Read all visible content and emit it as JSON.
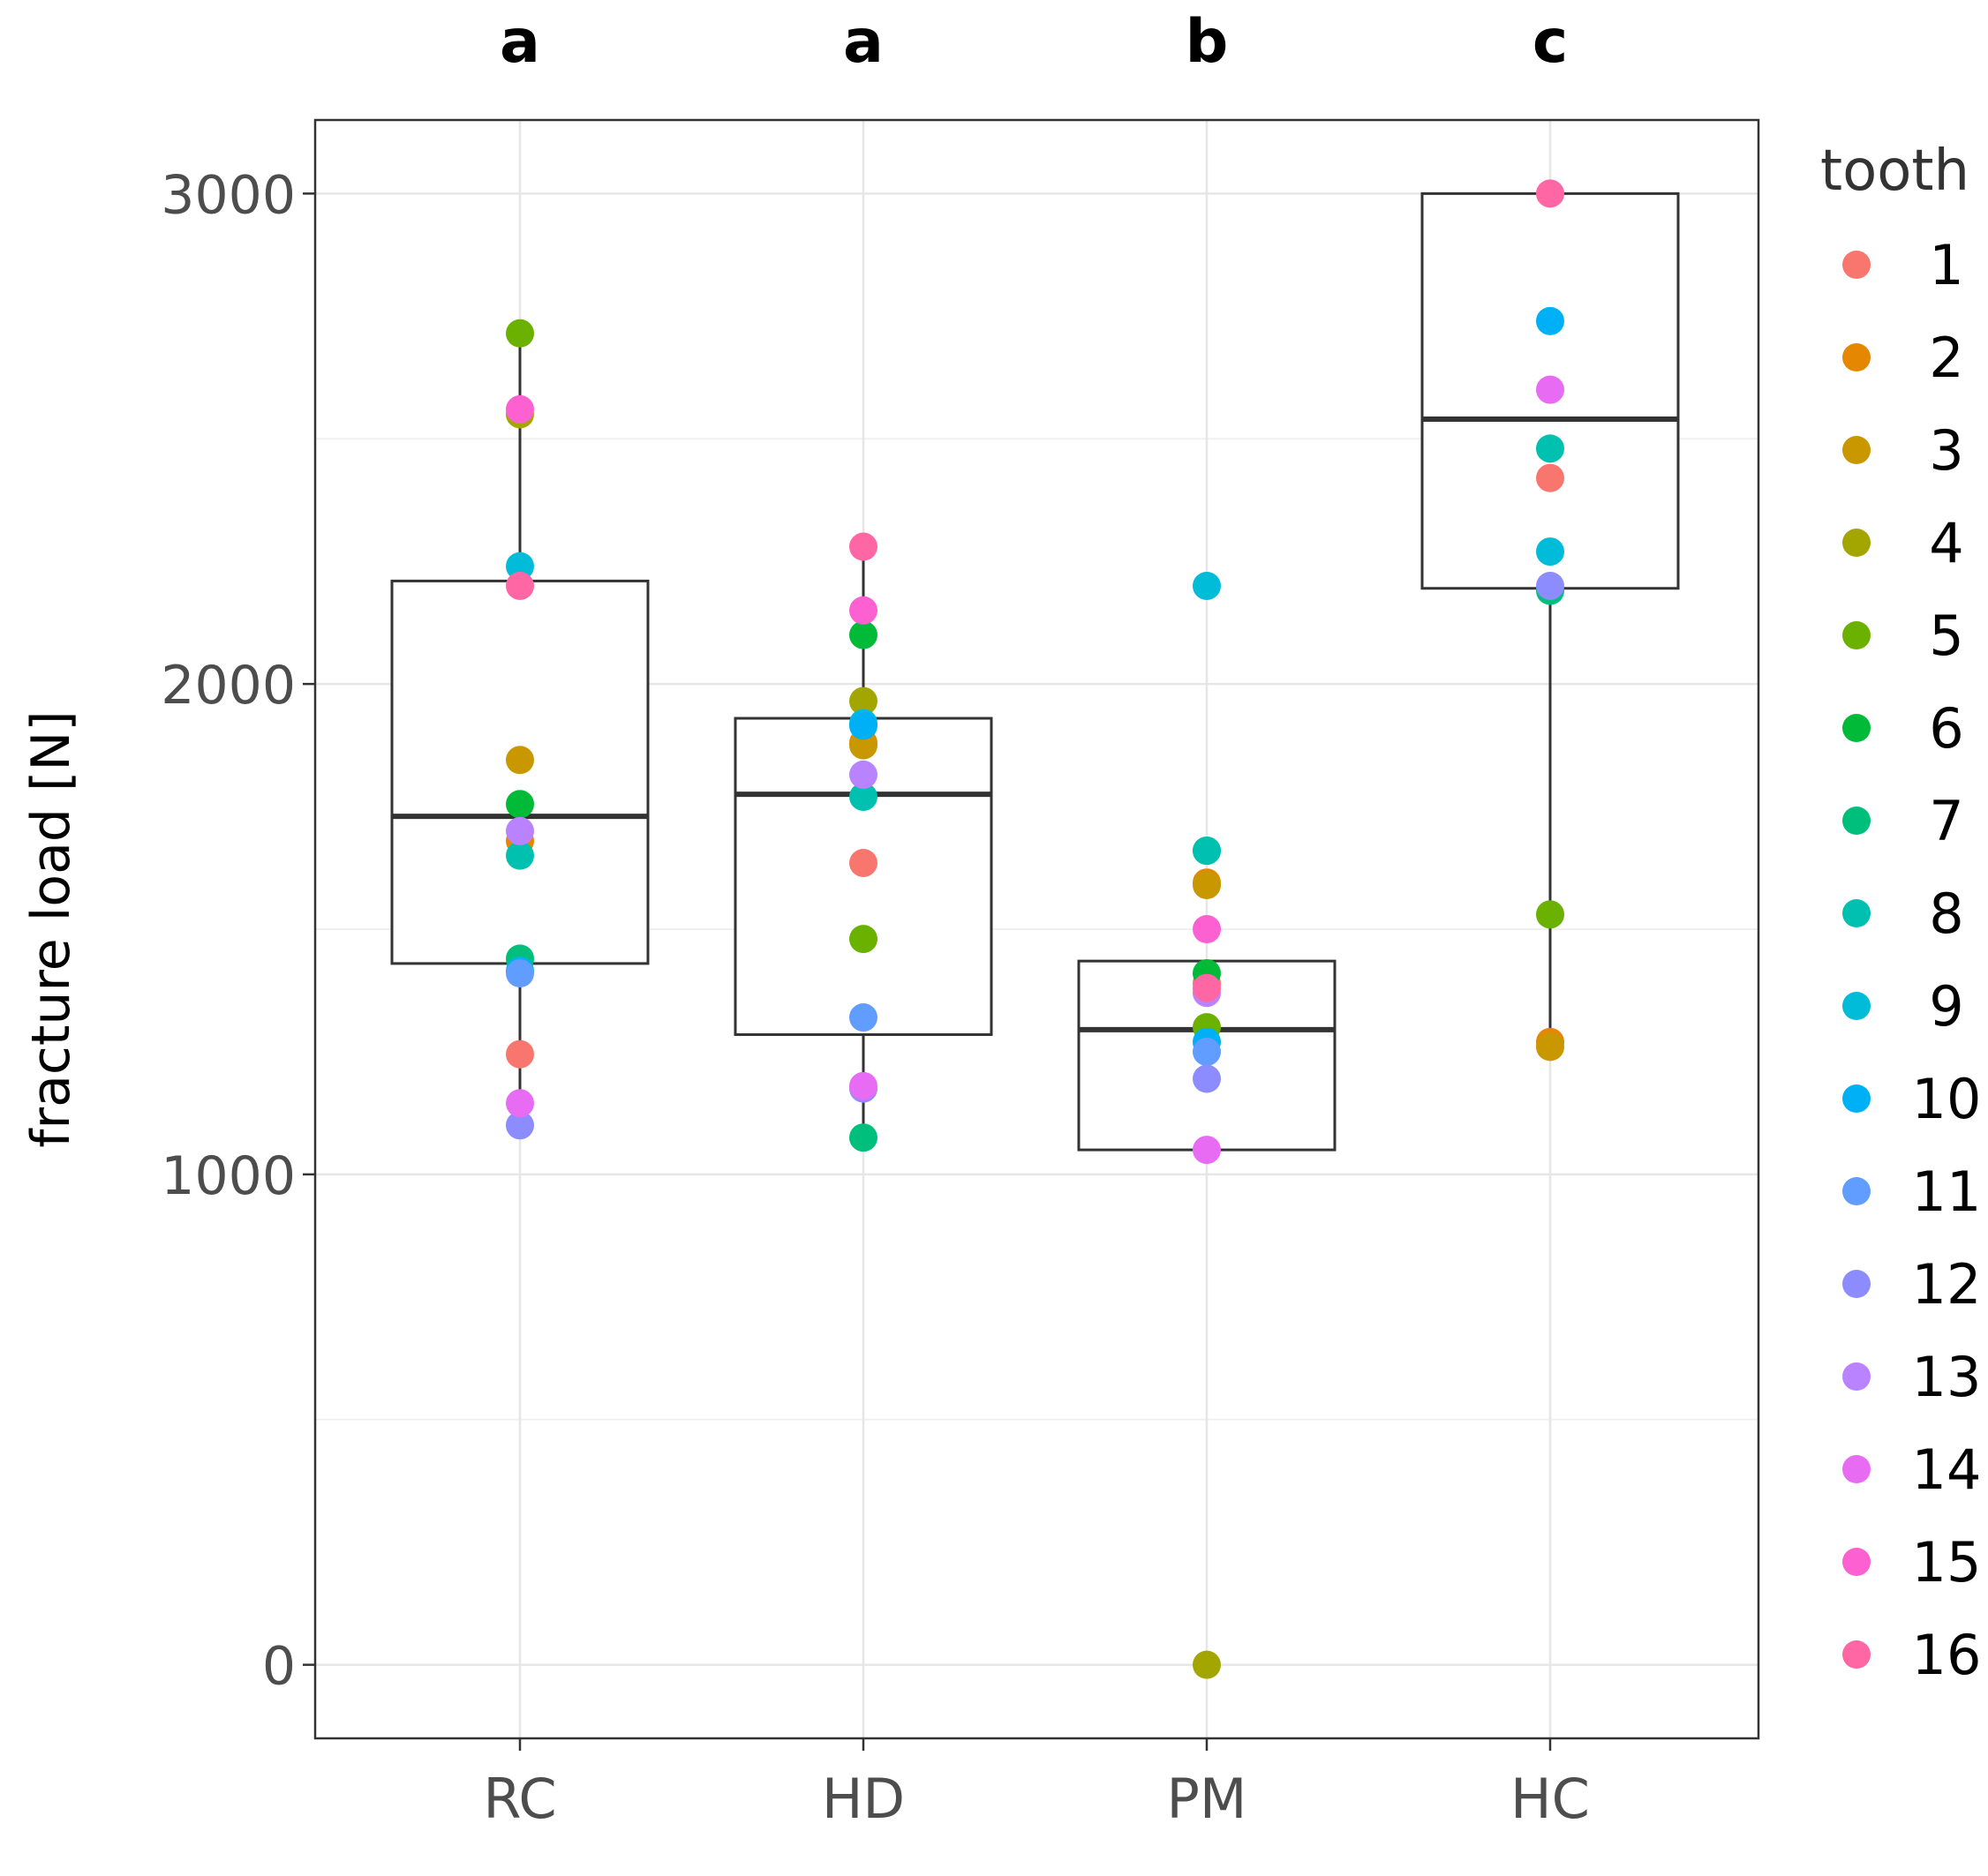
{
  "chart_data": {
    "type": "box",
    "title": "",
    "xlabel": "",
    "ylabel": "fracture load [N]",
    "ylim": [
      -150,
      3150
    ],
    "y_ticks": [
      0,
      1000,
      2000,
      3000
    ],
    "grid": true,
    "legend_position": "right",
    "legend_title": "tooth",
    "categories": [
      "RC",
      "HD",
      "PM",
      "HC"
    ],
    "significance": [
      "a",
      "a",
      "b",
      "c"
    ],
    "boxes": [
      {
        "group": "RC",
        "q1": 1430,
        "median": 1730,
        "q3": 2210,
        "whisker_low": 1100,
        "whisker_high": 2710
      },
      {
        "group": "HD",
        "q1": 1285,
        "median": 1775,
        "q3": 1930,
        "whisker_low": 1075,
        "whisker_high": 2285
      },
      {
        "group": "PM",
        "q1": 1050,
        "median": 1295,
        "q3": 1435,
        "whisker_low": 1050,
        "whisker_high": 1435
      },
      {
        "group": "HC",
        "q1": 2195,
        "median": 2540,
        "q3": 3000,
        "whisker_low": 1265,
        "whisker_high": 3000
      }
    ],
    "legend": {
      "entries": [
        "1",
        "2",
        "3",
        "4",
        "5",
        "6",
        "7",
        "8",
        "9",
        "10",
        "11",
        "12",
        "13",
        "14",
        "15",
        "16"
      ],
      "colors": [
        "#F8766D",
        "#E58700",
        "#C99800",
        "#A3A500",
        "#6BB100",
        "#00BA38",
        "#00BF7D",
        "#00C0AF",
        "#00BCD8",
        "#00B0F6",
        "#619CFF",
        "#8C8CFF",
        "#B983FF",
        "#E76BF3",
        "#FD61D1",
        "#FF67A4"
      ]
    },
    "points": {
      "RC": [
        {
          "tooth": "1",
          "value": 1245
        },
        {
          "tooth": "2",
          "value": 1680
        },
        {
          "tooth": "3",
          "value": 1845
        },
        {
          "tooth": "4",
          "value": 2550
        },
        {
          "tooth": "5",
          "value": 2715
        },
        {
          "tooth": "6",
          "value": 1755
        },
        {
          "tooth": "7",
          "value": 1440
        },
        {
          "tooth": "8",
          "value": 1650
        },
        {
          "tooth": "9",
          "value": 2240
        },
        {
          "tooth": "10",
          "value": 1415
        },
        {
          "tooth": "11",
          "value": 1410
        },
        {
          "tooth": "12",
          "value": 1100
        },
        {
          "tooth": "13",
          "value": 1700
        },
        {
          "tooth": "14",
          "value": 1145
        },
        {
          "tooth": "15",
          "value": 2560
        },
        {
          "tooth": "16",
          "value": 2200
        }
      ],
      "HD": [
        {
          "tooth": "1",
          "value": 1635
        },
        {
          "tooth": "2",
          "value": 1880
        },
        {
          "tooth": "3",
          "value": 1875
        },
        {
          "tooth": "4",
          "value": 1965
        },
        {
          "tooth": "5",
          "value": 1480
        },
        {
          "tooth": "6",
          "value": 2100
        },
        {
          "tooth": "7",
          "value": 1075
        },
        {
          "tooth": "8",
          "value": 1770
        },
        {
          "tooth": "9",
          "value": 1920
        },
        {
          "tooth": "10",
          "value": 1915
        },
        {
          "tooth": "11",
          "value": 1320
        },
        {
          "tooth": "12",
          "value": 1175
        },
        {
          "tooth": "13",
          "value": 1815
        },
        {
          "tooth": "14",
          "value": 1180
        },
        {
          "tooth": "15",
          "value": 2150
        },
        {
          "tooth": "16",
          "value": 2280
        }
      ],
      "PM": [
        {
          "tooth": "1",
          "value": 1390
        },
        {
          "tooth": "2",
          "value": 1595
        },
        {
          "tooth": "3",
          "value": 1590
        },
        {
          "tooth": "4",
          "value": 0
        },
        {
          "tooth": "5",
          "value": 1300
        },
        {
          "tooth": "6",
          "value": 1410
        },
        {
          "tooth": "7",
          "value": 1660
        },
        {
          "tooth": "8",
          "value": 1660
        },
        {
          "tooth": "9",
          "value": 2200
        },
        {
          "tooth": "10",
          "value": 1270
        },
        {
          "tooth": "11",
          "value": 1250
        },
        {
          "tooth": "12",
          "value": 1195
        },
        {
          "tooth": "13",
          "value": 1370
        },
        {
          "tooth": "14",
          "value": 1050
        },
        {
          "tooth": "15",
          "value": 1500
        },
        {
          "tooth": "16",
          "value": 1380
        }
      ],
      "HC": [
        {
          "tooth": "1",
          "value": 2420
        },
        {
          "tooth": "2",
          "value": 1270
        },
        {
          "tooth": "3",
          "value": 1260
        },
        {
          "tooth": "5",
          "value": 1530
        },
        {
          "tooth": "7",
          "value": 2190
        },
        {
          "tooth": "8",
          "value": 2480
        },
        {
          "tooth": "9",
          "value": 2270
        },
        {
          "tooth": "10",
          "value": 2740
        },
        {
          "tooth": "12",
          "value": 2200
        },
        {
          "tooth": "14",
          "value": 2600
        },
        {
          "tooth": "16",
          "value": 3000
        }
      ]
    }
  }
}
